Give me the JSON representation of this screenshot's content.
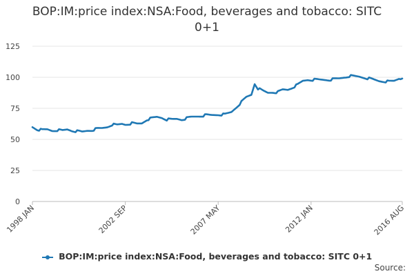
{
  "chart_data": {
    "type": "line",
    "title_line1": "BOP:IM:price index:NSA:Food, beverages and tobacco: SITC",
    "title_line2": "0+1",
    "xlabel": "",
    "ylabel": "",
    "ylim": [
      0,
      125
    ],
    "y_ticks": [
      0,
      25,
      50,
      75,
      100,
      125
    ],
    "x_tick_labels": [
      "1998 JAN",
      "2002 SEP",
      "2007 MAY",
      "2012 JAN",
      "2016 AUG"
    ],
    "x_tick_dates": [
      "1998-01",
      "2002-09",
      "2007-05",
      "2012-01",
      "2016-08"
    ],
    "grid": true,
    "legend_position": "bottom",
    "series": [
      {
        "name": "BOP:IM:price index:NSA:Food, beverages and tobacco: SITC 0+1",
        "color": "#1f78b4",
        "points": [
          [
            "1998-01",
            60
          ],
          [
            "1998-04",
            58
          ],
          [
            "1998-07",
            57.5
          ],
          [
            "1998-10",
            58
          ],
          [
            "1999-01",
            57
          ],
          [
            "1999-04",
            57.5
          ],
          [
            "1999-07",
            57
          ],
          [
            "1999-10",
            58
          ],
          [
            "2000-01",
            57
          ],
          [
            "2000-04",
            56.5
          ],
          [
            "2000-07",
            56
          ],
          [
            "2000-10",
            57
          ],
          [
            "2001-01",
            57.5
          ],
          [
            "2001-04",
            58.5
          ],
          [
            "2001-07",
            59
          ],
          [
            "2001-10",
            60
          ],
          [
            "2002-01",
            62
          ],
          [
            "2002-04",
            61.5
          ],
          [
            "2002-07",
            62.5
          ],
          [
            "2002-09",
            62
          ],
          [
            "2003-01",
            63
          ],
          [
            "2003-04",
            62.5
          ],
          [
            "2003-07",
            63
          ],
          [
            "2003-10",
            66
          ],
          [
            "2004-01",
            67
          ],
          [
            "2004-04",
            68
          ],
          [
            "2004-07",
            67.5
          ],
          [
            "2004-10",
            66
          ],
          [
            "2005-01",
            66
          ],
          [
            "2005-04",
            66.5
          ],
          [
            "2005-07",
            66
          ],
          [
            "2005-10",
            67
          ],
          [
            "2006-01",
            68
          ],
          [
            "2006-04",
            68.5
          ],
          [
            "2006-07",
            69
          ],
          [
            "2006-10",
            69.5
          ],
          [
            "2007-01",
            69.5
          ],
          [
            "2007-05",
            70
          ],
          [
            "2007-09",
            70
          ],
          [
            "2008-01",
            72
          ],
          [
            "2008-04",
            76
          ],
          [
            "2008-07",
            80
          ],
          [
            "2008-10",
            84
          ],
          [
            "2009-01",
            86
          ],
          [
            "2009-03",
            95
          ],
          [
            "2009-05",
            91
          ],
          [
            "2009-08",
            89
          ],
          [
            "2009-11",
            87.5
          ],
          [
            "2010-02",
            88
          ],
          [
            "2010-05",
            88
          ],
          [
            "2010-08",
            90
          ],
          [
            "2010-11",
            90
          ],
          [
            "2011-02",
            92
          ],
          [
            "2011-05",
            94
          ],
          [
            "2011-08",
            97
          ],
          [
            "2011-11",
            98
          ],
          [
            "2012-01",
            98
          ],
          [
            "2012-06",
            98
          ],
          [
            "2012-12",
            98
          ],
          [
            "2013-06",
            99
          ],
          [
            "2013-12",
            101
          ],
          [
            "2014-06",
            100.5
          ],
          [
            "2014-12",
            99
          ],
          [
            "2015-06",
            97
          ],
          [
            "2015-12",
            96.5
          ],
          [
            "2016-03",
            97
          ],
          [
            "2016-06",
            99
          ],
          [
            "2016-08",
            99
          ]
        ]
      }
    ]
  },
  "source_label": "Source:"
}
